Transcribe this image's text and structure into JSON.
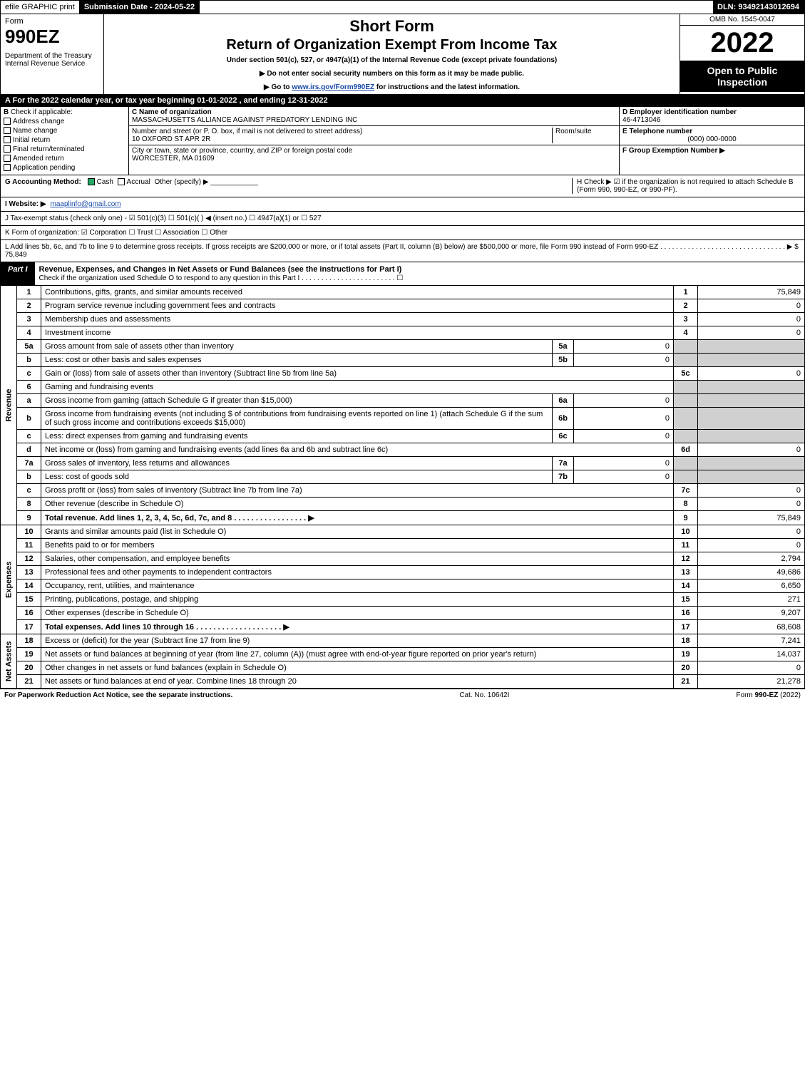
{
  "topbar": {
    "efile": "efile GRAPHIC print",
    "submission": "Submission Date - 2024-05-22",
    "dln": "DLN: 93492143012694"
  },
  "header": {
    "form_word": "Form",
    "form_num": "990EZ",
    "dept": "Department of the Treasury\nInternal Revenue Service",
    "short_form": "Short Form",
    "return_title": "Return of Organization Exempt From Income Tax",
    "subtitle": "Under section 501(c), 527, or 4947(a)(1) of the Internal Revenue Code (except private foundations)",
    "note1": "▶ Do not enter social security numbers on this form as it may be made public.",
    "note2_pre": "▶ Go to ",
    "note2_link": "www.irs.gov/Form990EZ",
    "note2_post": " for instructions and the latest information.",
    "omb": "OMB No. 1545-0047",
    "year": "2022",
    "open": "Open to Public Inspection"
  },
  "sec_a": "A  For the 2022 calendar year, or tax year beginning 01-01-2022 , and ending 12-31-2022",
  "col_b": {
    "hdr": "B",
    "label": "Check if applicable:",
    "opts": [
      "Address change",
      "Name change",
      "Initial return",
      "Final return/terminated",
      "Amended return",
      "Application pending"
    ]
  },
  "col_c": {
    "name_hdr": "C Name of organization",
    "name": "MASSACHUSETTS ALLIANCE AGAINST PREDATORY LENDING INC",
    "street_hdr": "Number and street (or P. O. box, if mail is not delivered to street address)",
    "room_hdr": "Room/suite",
    "street": "10 OXFORD ST APR 2R",
    "city_hdr": "City or town, state or province, country, and ZIP or foreign postal code",
    "city": "WORCESTER, MA  01609"
  },
  "col_d": {
    "ein_hdr": "D Employer identification number",
    "ein": "46-4713046",
    "tel_hdr": "E Telephone number",
    "tel": "(000) 000-0000",
    "grp_hdr": "F Group Exemption Number  ▶"
  },
  "g_row": {
    "lbl": "G Accounting Method:",
    "cash": "Cash",
    "accrual": "Accrual",
    "other": "Other (specify) ▶"
  },
  "h_row": "H  Check ▶ ☑ if the organization is not required to attach Schedule B (Form 990, 990-EZ, or 990-PF).",
  "i_row": {
    "lbl": "I Website: ▶",
    "val": "maaplinfo@gmail.com"
  },
  "j_row": "J Tax-exempt status (check only one) - ☑ 501(c)(3)  ☐ 501(c)(  ) ◀ (insert no.)  ☐ 4947(a)(1) or  ☐ 527",
  "k_row": "K Form of organization:  ☑ Corporation   ☐ Trust   ☐ Association   ☐ Other",
  "l_row": "L Add lines 5b, 6c, and 7b to line 9 to determine gross receipts. If gross receipts are $200,000 or more, or if total assets (Part II, column (B) below) are $500,000 or more, file Form 990 instead of Form 990-EZ . . . . . . . . . . . . . . . . . . . . . . . . . . . . . . . . ▶ $ 75,849",
  "part1": {
    "tab": "Part I",
    "title": "Revenue, Expenses, and Changes in Net Assets or Fund Balances (see the instructions for Part I)",
    "check": "Check if the organization used Schedule O to respond to any question in this Part I . . . . . . . . . . . . . . . . . . . . . . . . ☐"
  },
  "sections": {
    "revenue": "Revenue",
    "expenses": "Expenses",
    "net_assets": "Net Assets"
  },
  "lines": [
    {
      "n": "1",
      "desc": "Contributions, gifts, grants, and similar amounts received",
      "rn": "1",
      "rv": "75,849"
    },
    {
      "n": "2",
      "desc": "Program service revenue including government fees and contracts",
      "rn": "2",
      "rv": "0"
    },
    {
      "n": "3",
      "desc": "Membership dues and assessments",
      "rn": "3",
      "rv": "0"
    },
    {
      "n": "4",
      "desc": "Investment income",
      "rn": "4",
      "rv": "0"
    },
    {
      "n": "5a",
      "desc": "Gross amount from sale of assets other than inventory",
      "mn": "5a",
      "mv": "0"
    },
    {
      "n": "b",
      "desc": "Less: cost or other basis and sales expenses",
      "mn": "5b",
      "mv": "0"
    },
    {
      "n": "c",
      "desc": "Gain or (loss) from sale of assets other than inventory (Subtract line 5b from line 5a)",
      "rn": "5c",
      "rv": "0"
    },
    {
      "n": "6",
      "desc": "Gaming and fundraising events"
    },
    {
      "n": "a",
      "desc": "Gross income from gaming (attach Schedule G if greater than $15,000)",
      "mn": "6a",
      "mv": "0"
    },
    {
      "n": "b",
      "desc": "Gross income from fundraising events (not including $                         of contributions from fundraising events reported on line 1) (attach Schedule G if the sum of such gross income and contributions exceeds $15,000)",
      "mn": "6b",
      "mv": "0"
    },
    {
      "n": "c",
      "desc": "Less: direct expenses from gaming and fundraising events",
      "mn": "6c",
      "mv": "0"
    },
    {
      "n": "d",
      "desc": "Net income or (loss) from gaming and fundraising events (add lines 6a and 6b and subtract line 6c)",
      "rn": "6d",
      "rv": "0"
    },
    {
      "n": "7a",
      "desc": "Gross sales of inventory, less returns and allowances",
      "mn": "7a",
      "mv": "0"
    },
    {
      "n": "b",
      "desc": "Less: cost of goods sold",
      "mn": "7b",
      "mv": "0"
    },
    {
      "n": "c",
      "desc": "Gross profit or (loss) from sales of inventory (Subtract line 7b from line 7a)",
      "rn": "7c",
      "rv": "0"
    },
    {
      "n": "8",
      "desc": "Other revenue (describe in Schedule O)",
      "rn": "8",
      "rv": "0"
    },
    {
      "n": "9",
      "desc": "Total revenue. Add lines 1, 2, 3, 4, 5c, 6d, 7c, and 8 . . . . . . . . . . . . . . . . .  ▶",
      "rn": "9",
      "rv": "75,849",
      "bold": true
    }
  ],
  "exp_lines": [
    {
      "n": "10",
      "desc": "Grants and similar amounts paid (list in Schedule O)",
      "rn": "10",
      "rv": "0"
    },
    {
      "n": "11",
      "desc": "Benefits paid to or for members",
      "rn": "11",
      "rv": "0"
    },
    {
      "n": "12",
      "desc": "Salaries, other compensation, and employee benefits",
      "rn": "12",
      "rv": "2,794"
    },
    {
      "n": "13",
      "desc": "Professional fees and other payments to independent contractors",
      "rn": "13",
      "rv": "49,686"
    },
    {
      "n": "14",
      "desc": "Occupancy, rent, utilities, and maintenance",
      "rn": "14",
      "rv": "6,650"
    },
    {
      "n": "15",
      "desc": "Printing, publications, postage, and shipping",
      "rn": "15",
      "rv": "271"
    },
    {
      "n": "16",
      "desc": "Other expenses (describe in Schedule O)",
      "rn": "16",
      "rv": "9,207"
    },
    {
      "n": "17",
      "desc": "Total expenses. Add lines 10 through 16 . . . . . . . . . . . . . . . . . . . .  ▶",
      "rn": "17",
      "rv": "68,608",
      "bold": true
    }
  ],
  "na_lines": [
    {
      "n": "18",
      "desc": "Excess or (deficit) for the year (Subtract line 17 from line 9)",
      "rn": "18",
      "rv": "7,241"
    },
    {
      "n": "19",
      "desc": "Net assets or fund balances at beginning of year (from line 27, column (A)) (must agree with end-of-year figure reported on prior year's return)",
      "rn": "19",
      "rv": "14,037"
    },
    {
      "n": "20",
      "desc": "Other changes in net assets or fund balances (explain in Schedule O)",
      "rn": "20",
      "rv": "0"
    },
    {
      "n": "21",
      "desc": "Net assets or fund balances at end of year. Combine lines 18 through 20",
      "rn": "21",
      "rv": "21,278"
    }
  ],
  "footer": {
    "left": "For Paperwork Reduction Act Notice, see the separate instructions.",
    "mid": "Cat. No. 10642I",
    "right": "Form 990-EZ (2022)"
  }
}
